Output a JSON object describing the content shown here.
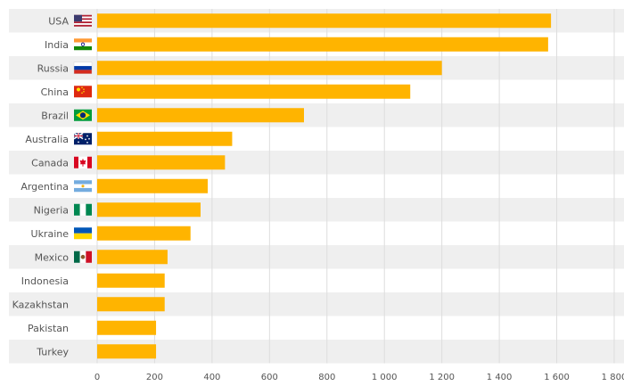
{
  "chart_data": {
    "type": "bar",
    "orientation": "horizontal",
    "title": "",
    "xlabel": "",
    "ylabel": "",
    "categories": [
      "USA",
      "India",
      "Russia",
      "China",
      "Brazil",
      "Australia",
      "Canada",
      "Argentina",
      "Nigeria",
      "Ukraine",
      "Mexico",
      "Indonesia",
      "Kazakhstan",
      "Pakistan",
      "Turkey"
    ],
    "flags": [
      "us",
      "in",
      "ru",
      "cn",
      "br",
      "au",
      "ca",
      "ar",
      "ng",
      "ua",
      "mx",
      "",
      "",
      "",
      ""
    ],
    "values": [
      1580,
      1570,
      1200,
      1090,
      720,
      470,
      445,
      385,
      360,
      325,
      245,
      235,
      235,
      205,
      205
    ],
    "xlim": [
      0,
      1800
    ],
    "ticks": [
      0,
      200,
      400,
      600,
      800,
      1000,
      1200,
      1400,
      1600,
      1800
    ],
    "tick_labels": [
      "0",
      "200",
      "400",
      "600",
      "800",
      "1 000",
      "1 200",
      "1 400",
      "1 600",
      "1 800"
    ],
    "grid": true,
    "legend": "none",
    "colors": {
      "bar": "#FFB400",
      "band": "#EFEFEF",
      "grid": "#DDDDDD",
      "text": "#555555"
    }
  }
}
